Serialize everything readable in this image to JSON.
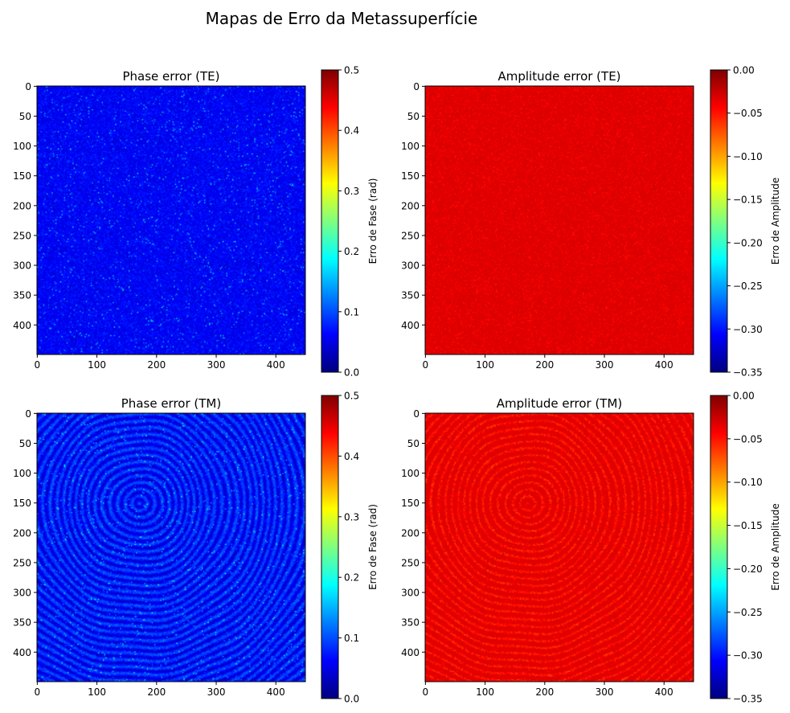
{
  "suptitle": "Mapas de Erro da Metassuperfície",
  "colormaps": {
    "jet": [
      "#00007f",
      "#0000ff",
      "#007fff",
      "#00ffff",
      "#7fff7f",
      "#ffff00",
      "#ff7f00",
      "#ff0000",
      "#7f0000"
    ]
  },
  "chart_data": [
    {
      "type": "heatmap",
      "title": "Phase error (TE)",
      "image_size": [
        450,
        450
      ],
      "x_ticks": [
        "0",
        "100",
        "200",
        "300",
        "400"
      ],
      "y_ticks": [
        "0",
        "50",
        "100",
        "150",
        "200",
        "250",
        "300",
        "350",
        "400"
      ],
      "colorbar": {
        "label": "Erro de Fase (rad)",
        "range": [
          0.0,
          0.5
        ],
        "ticks": [
          "0.0",
          "0.1",
          "0.2",
          "0.3",
          "0.4",
          "0.5"
        ]
      },
      "dominant_value": 0.06,
      "pattern": "uniform-noise"
    },
    {
      "type": "heatmap",
      "title": "Amplitude error (TE)",
      "image_size": [
        450,
        450
      ],
      "x_ticks": [
        "0",
        "100",
        "200",
        "300",
        "400"
      ],
      "y_ticks": [
        "0",
        "50",
        "100",
        "150",
        "200",
        "250",
        "300",
        "350",
        "400"
      ],
      "colorbar": {
        "label": "Erro de Amplitude",
        "range": [
          -0.35,
          0.0
        ],
        "ticks": [
          "0.00",
          "−0.05",
          "−0.10",
          "−0.15",
          "−0.20",
          "−0.25",
          "−0.30",
          "−0.35"
        ]
      },
      "dominant_value": -0.03,
      "pattern": "uniform-noise"
    },
    {
      "type": "heatmap",
      "title": "Phase error (TM)",
      "image_size": [
        450,
        450
      ],
      "x_ticks": [
        "0",
        "100",
        "200",
        "300",
        "400"
      ],
      "y_ticks": [
        "0",
        "50",
        "100",
        "150",
        "200",
        "250",
        "300",
        "350",
        "400"
      ],
      "colorbar": {
        "label": "Erro de Fase (rad)",
        "range": [
          0.0,
          0.5
        ],
        "ticks": [
          "0.0",
          "0.1",
          "0.2",
          "0.3",
          "0.4",
          "0.5"
        ]
      },
      "dominant_value": 0.07,
      "pattern": "concentric-rings",
      "ring_center": [
        170,
        150
      ]
    },
    {
      "type": "heatmap",
      "title": "Amplitude error (TM)",
      "image_size": [
        450,
        450
      ],
      "x_ticks": [
        "0",
        "100",
        "200",
        "300",
        "400"
      ],
      "y_ticks": [
        "0",
        "50",
        "100",
        "150",
        "200",
        "250",
        "300",
        "350",
        "400"
      ],
      "colorbar": {
        "label": "Erro de Amplitude",
        "range": [
          -0.35,
          0.0
        ],
        "ticks": [
          "0.00",
          "−0.05",
          "−0.10",
          "−0.15",
          "−0.20",
          "−0.25",
          "−0.30",
          "−0.35"
        ]
      },
      "dominant_value": -0.03,
      "pattern": "concentric-rings",
      "ring_center": [
        170,
        150
      ]
    }
  ]
}
